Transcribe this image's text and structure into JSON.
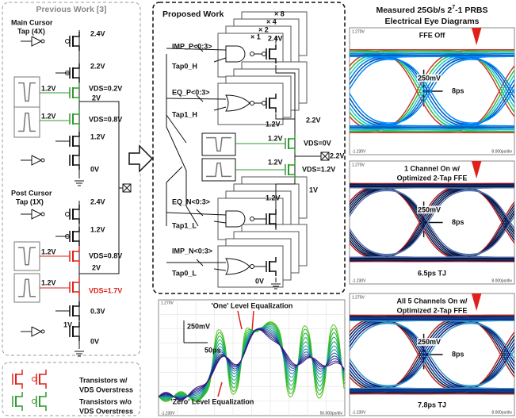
{
  "previous_work": {
    "title": "Previous Work [3]",
    "main_cursor": [
      "Main Cursor",
      "Tap (4X)"
    ],
    "main_voltages": [
      "2.4V",
      "2.2V",
      "1.2V",
      "VDS=0.2V",
      "2V",
      "1.2V",
      "VDS=0.8V",
      "1.2V",
      "0V"
    ],
    "post_cursor": [
      "Post Cursor",
      "Tap (1X)"
    ],
    "post_voltages": [
      "2.4V",
      "1.2V",
      "1.2V",
      "VDS=0.8V",
      "2V",
      "1.2V",
      "VDS=1.7V",
      "0.3V",
      "1V",
      "0V"
    ]
  },
  "legend": {
    "overstress": [
      "Transistors w/",
      "VDS Overstress"
    ],
    "no_overstress": [
      "Transistors w/o",
      "VDS Overstress"
    ]
  },
  "proposed_work": {
    "title": "Proposed Work",
    "multipliers": [
      "× 8",
      "× 4",
      "× 2",
      "× 1"
    ],
    "signals": [
      "IMP_P<0:3>",
      "Tap0_H",
      "EQ_P<0:3>",
      "Tap1_H",
      "EQ_N<0:3>",
      "Tap1_L",
      "IMP_N<0:3>",
      "Tap0_L"
    ],
    "voltages": [
      "2.4V",
      "1.2V",
      "2.2V",
      "1.2V",
      "VDS=0V",
      "2.2V",
      "1.2V",
      "VDS=1.2V",
      "1V",
      "1.2V",
      "0V"
    ]
  },
  "equalization_plot": {
    "top_label": "'One' Level Equalization",
    "bottom_label": "'Zero' Level Equalization",
    "vertical_scale": "250mV",
    "horizontal_scale": "50ps",
    "y_max": "1.270V",
    "y_min": "-1.230V",
    "time_div": "50.000ps/div"
  },
  "eye_diagrams": {
    "title_prefix": "Measured 25Gb/s 2",
    "title_exponent": "7",
    "title_suffix": "-1 PRBS",
    "subtitle": "Electrical Eye Diagrams",
    "panels": [
      {
        "heading": [
          "FFE Off"
        ],
        "vertical_scale": "250mV",
        "horizontal_scale": "8ps",
        "y_max": "1.270V",
        "y_min": "-1.230V",
        "time_div": "8.000ps/div"
      },
      {
        "heading": [
          "1 Channel On w/",
          "Optimized 2-Tap FFE"
        ],
        "vertical_scale": "250mV",
        "horizontal_scale": "8ps",
        "jitter": "6.5ps TJ",
        "y_max": "1.270V",
        "y_min": "-1.230V",
        "time_div": "8.000ps/div"
      },
      {
        "heading": [
          "All 5 Channels On w/",
          "Optimized 2-Tap FFE"
        ],
        "vertical_scale": "250mV",
        "horizontal_scale": "8ps",
        "jitter": "7.8ps TJ",
        "y_max": "1.270V",
        "y_min": "-1.230V",
        "time_div": "8.000ps/div"
      }
    ]
  }
}
